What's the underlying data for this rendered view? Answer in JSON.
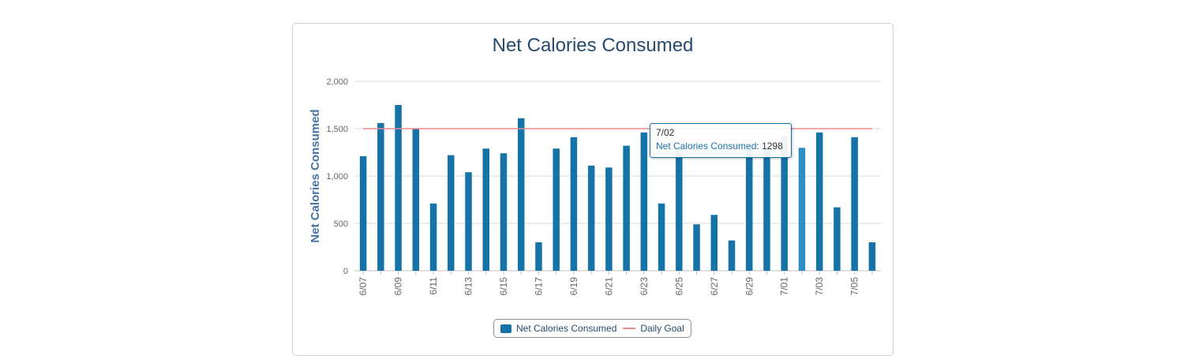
{
  "colors": {
    "bar": "#1673a8",
    "bar_hover": "#2f8fc4",
    "goal_line": "#e88a8a",
    "title": "#274b6d"
  },
  "chart_data": {
    "type": "bar",
    "title": "Net Calories Consumed",
    "ylabel": "Net Calories Consumed",
    "xlabel": "",
    "ylim": [
      0,
      2000
    ],
    "yticks": [
      "0",
      "500",
      "1,000",
      "1,500",
      "2,000"
    ],
    "grid": true,
    "legend_position": "bottom",
    "categories": [
      "6/07",
      "6/08",
      "6/09",
      "6/10",
      "6/11",
      "6/12",
      "6/13",
      "6/14",
      "6/15",
      "6/16",
      "6/17",
      "6/18",
      "6/19",
      "6/20",
      "6/21",
      "6/22",
      "6/23",
      "6/24",
      "6/25",
      "6/26",
      "6/27",
      "6/28",
      "6/29",
      "6/30",
      "7/01",
      "7/02",
      "7/03",
      "7/04",
      "7/05",
      "7/06"
    ],
    "xtick_labels": [
      "6/07",
      "",
      "6/09",
      "",
      "6/11",
      "",
      "6/13",
      "",
      "6/15",
      "",
      "6/17",
      "",
      "6/19",
      "",
      "6/21",
      "",
      "6/23",
      "",
      "6/25",
      "",
      "6/27",
      "",
      "6/29",
      "",
      "7/01",
      "",
      "7/03",
      "",
      "7/05",
      ""
    ],
    "series": [
      {
        "name": "Net Calories Consumed",
        "values": [
          1210,
          1560,
          1750,
          1500,
          710,
          1220,
          1040,
          1290,
          1240,
          1610,
          300,
          1290,
          1410,
          1110,
          1090,
          1320,
          1460,
          710,
          1280,
          490,
          590,
          320,
          1290,
          1310,
          1420,
          1298,
          1460,
          670,
          1410,
          300
        ]
      }
    ],
    "goal": {
      "name": "Daily Goal",
      "value": 1500
    },
    "highlighted_index": 25
  },
  "tooltip": {
    "date": "7/02",
    "series": "Net Calories Consumed",
    "value": "1298"
  },
  "legend": {
    "bar_label": "Net Calories Consumed",
    "line_label": "Daily Goal"
  }
}
